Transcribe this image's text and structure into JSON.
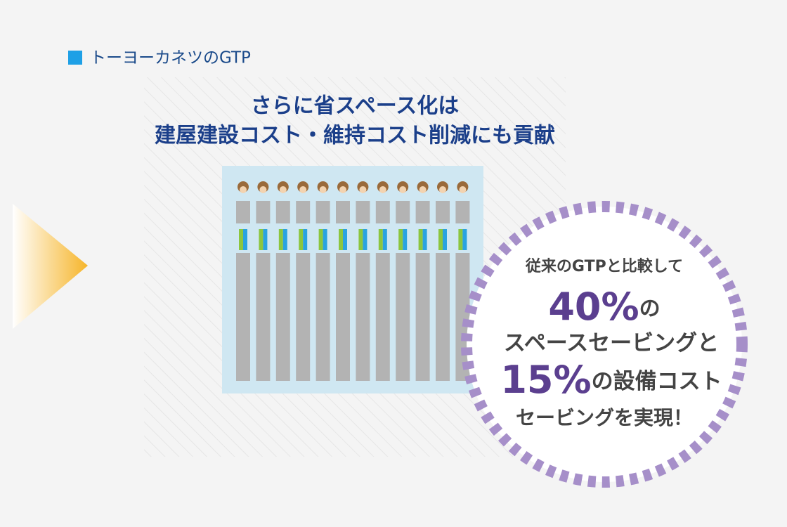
{
  "header": {
    "label": "トーヨーカネツのGTP"
  },
  "title": {
    "line1": "さらに省スペース化は",
    "line2": "建屋建設コスト・維持コスト削減にも貢献"
  },
  "badge": {
    "intro": "従来のGTPと比較して",
    "figure1": "40%",
    "figure1_suffix": "の",
    "line2": "スペースセービングと",
    "figure2": "15%",
    "figure2_suffix": "の設備コスト",
    "line4": "セービングを実現！"
  }
}
